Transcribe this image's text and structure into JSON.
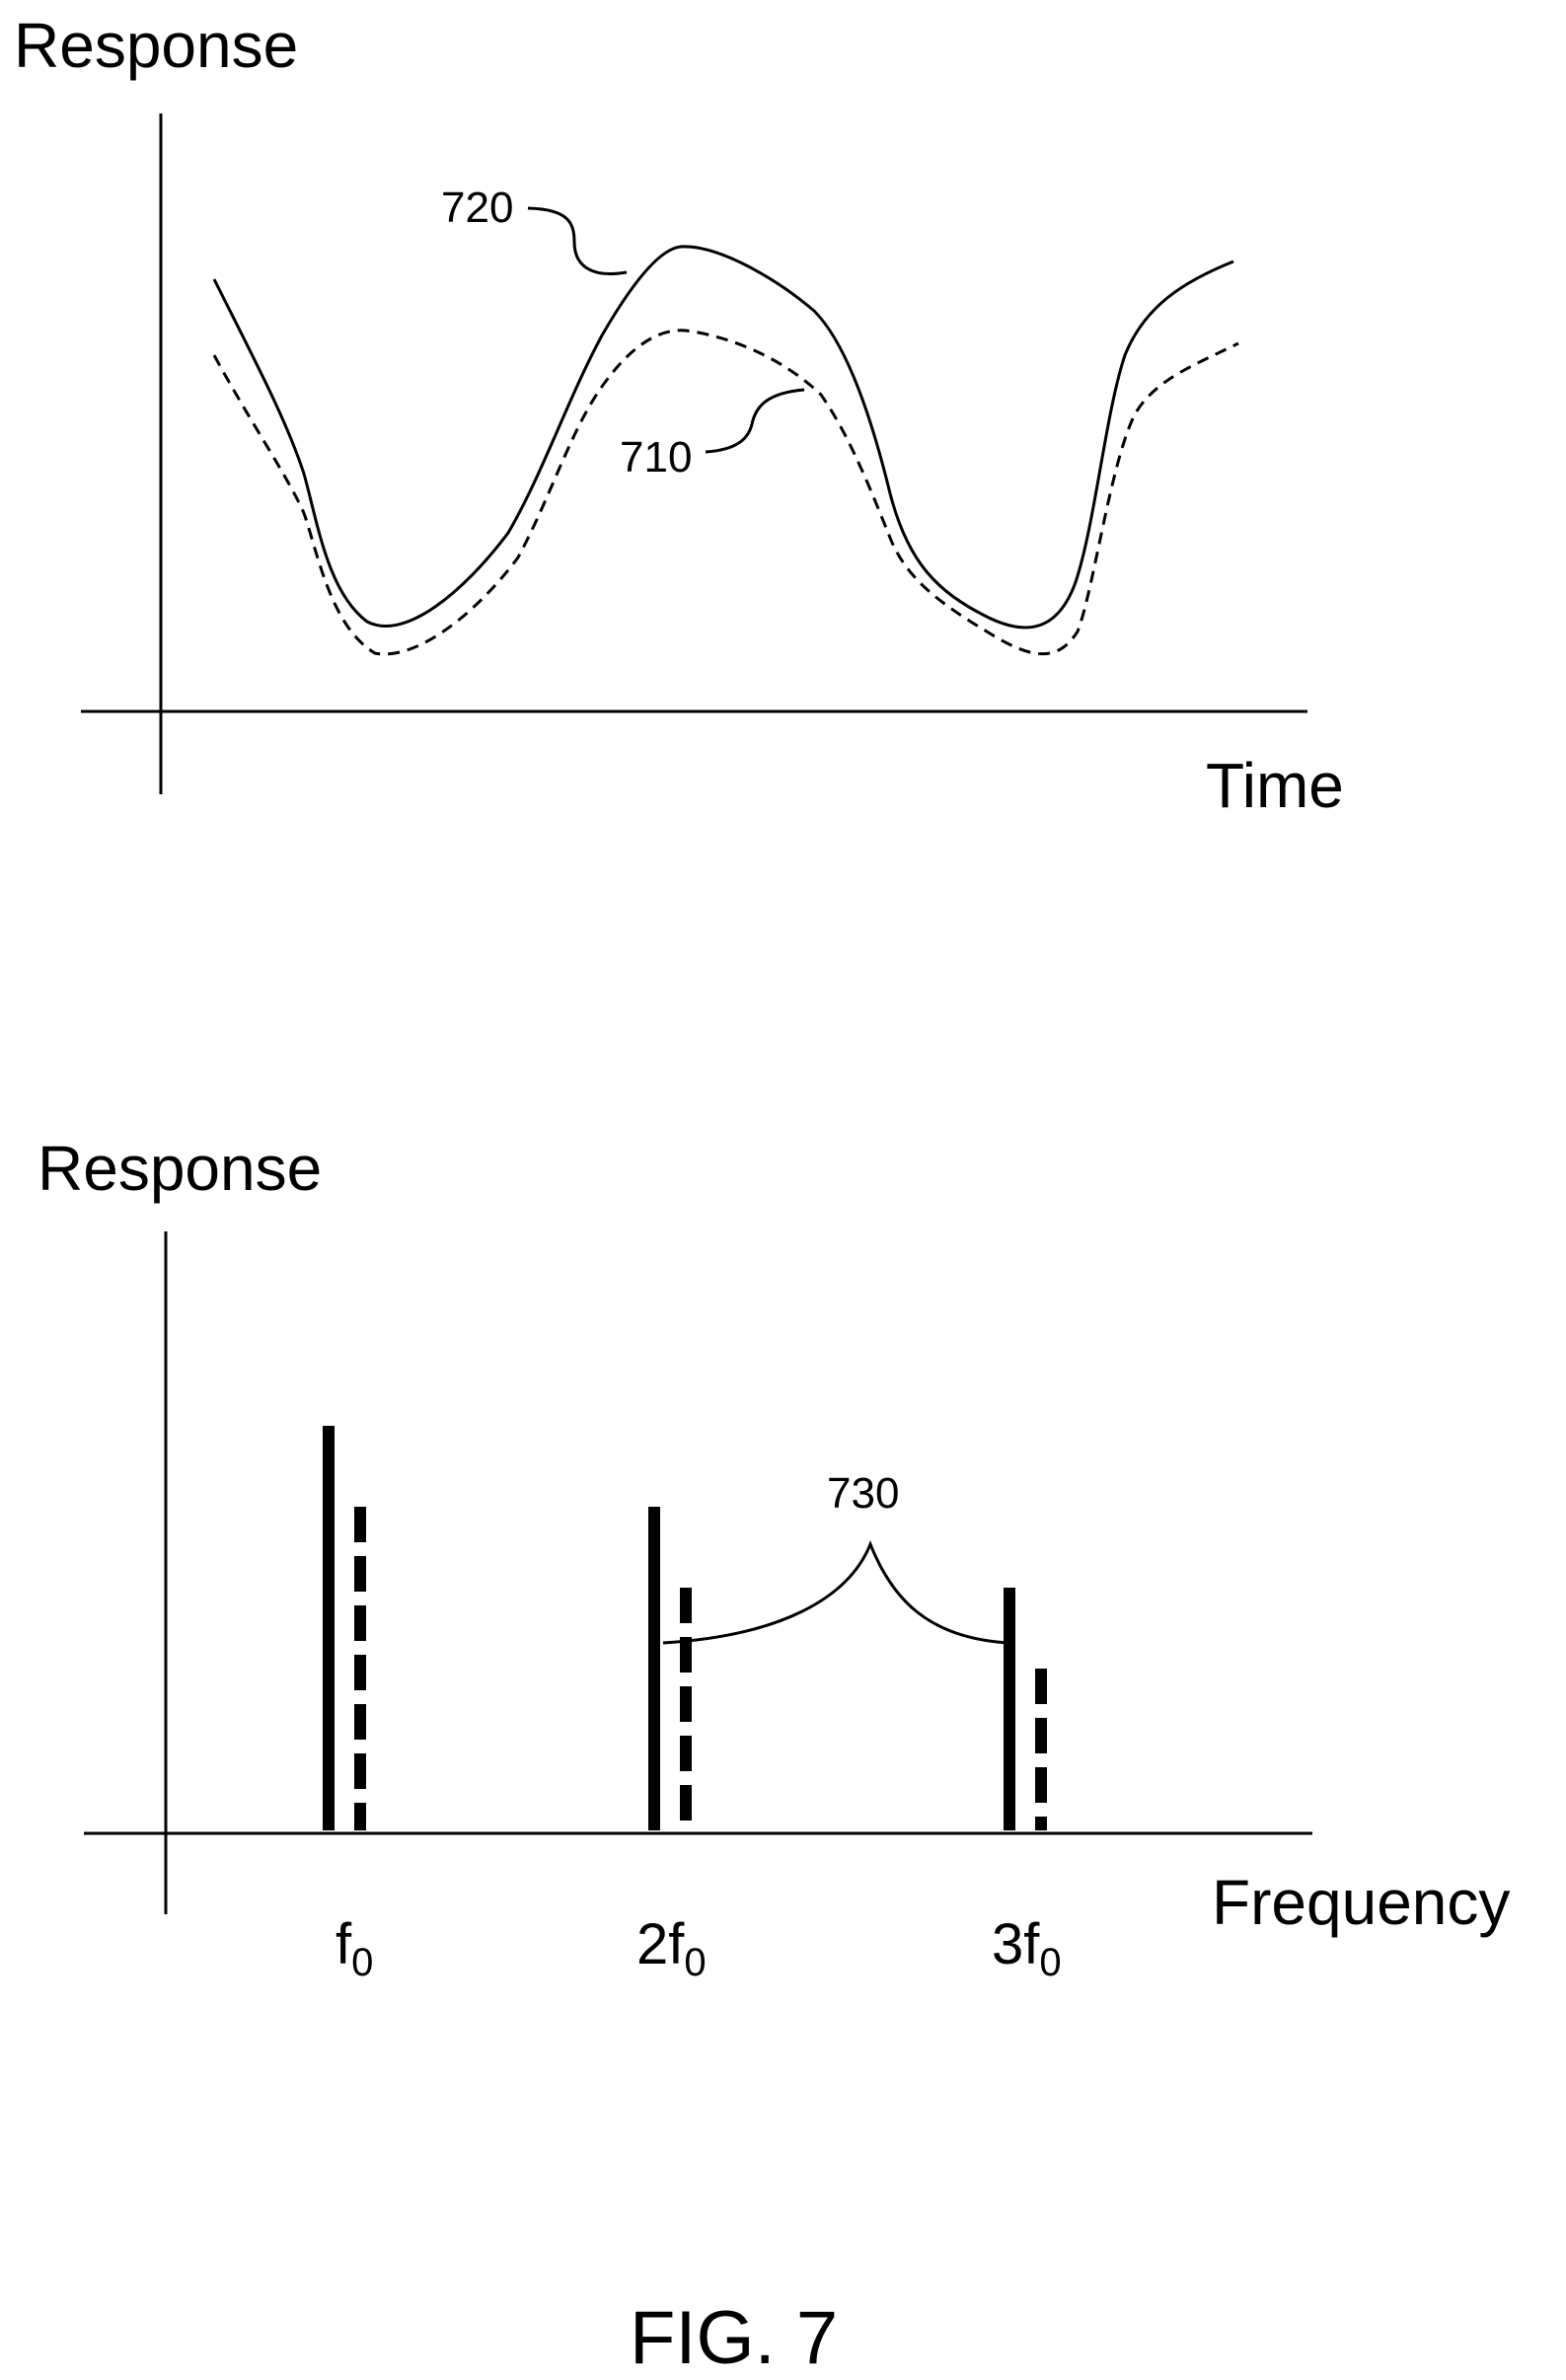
{
  "figure_label": "FIG. 7",
  "top_plot": {
    "y_axis_label": "Response",
    "x_axis_label": "Time",
    "curves": [
      {
        "ref": "720",
        "style": "solid"
      },
      {
        "ref": "710",
        "style": "dashed"
      }
    ]
  },
  "bottom_plot": {
    "y_axis_label": "Response",
    "x_axis_label": "Frequency",
    "ticks": [
      {
        "base": "f",
        "sub": "0",
        "coef": ""
      },
      {
        "base": "f",
        "sub": "0",
        "coef": "2"
      },
      {
        "base": "f",
        "sub": "0",
        "coef": "3"
      }
    ],
    "brace_ref": "730",
    "bars": [
      {
        "harmonic": 1,
        "solid": 1.0,
        "dashed": 0.8
      },
      {
        "harmonic": 2,
        "solid": 0.8,
        "dashed": 0.6
      },
      {
        "harmonic": 3,
        "solid": 0.6,
        "dashed": 0.4
      }
    ]
  }
}
